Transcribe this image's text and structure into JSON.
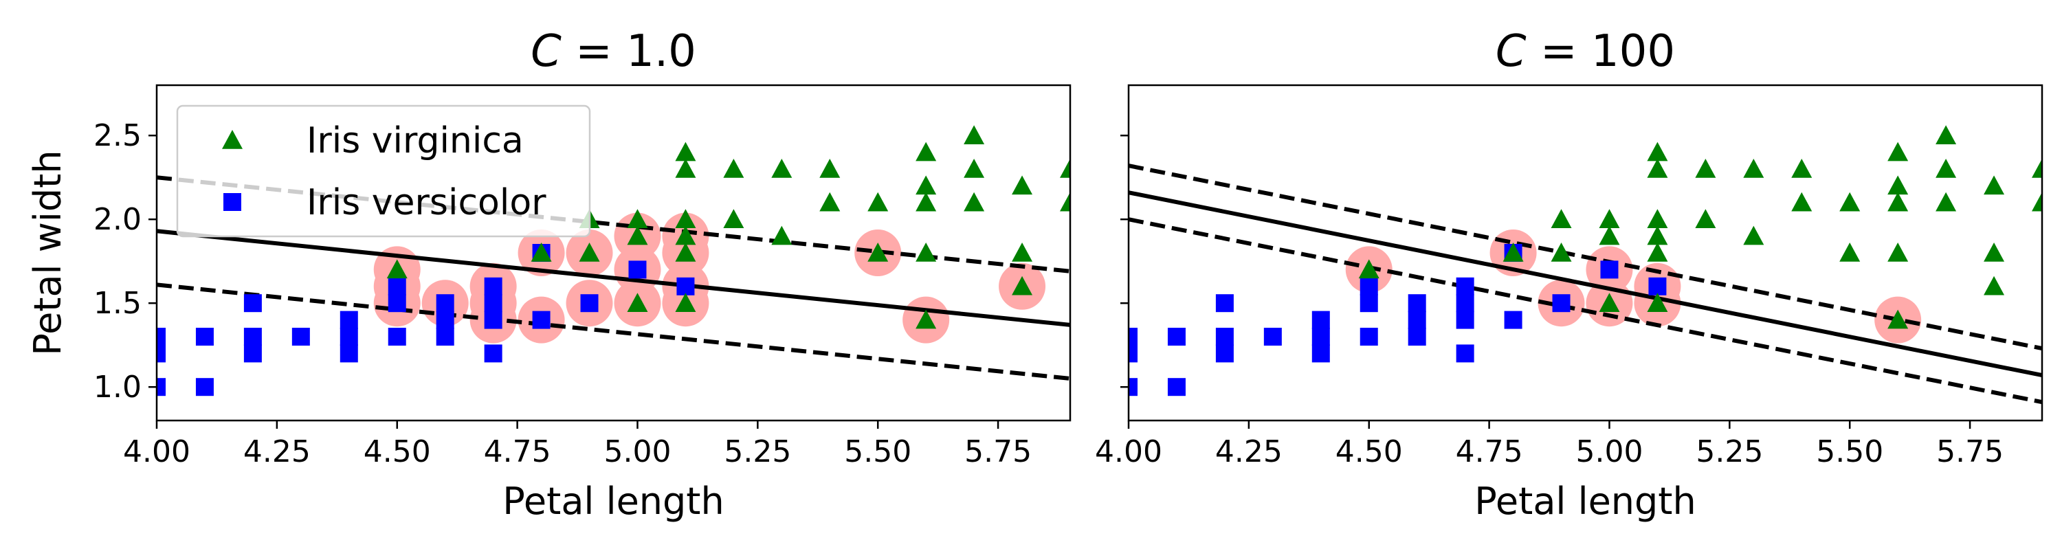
{
  "chart_data": [
    {
      "type": "scatter",
      "title": "C = 1.0",
      "title_var": "C",
      "title_value": "= 1.0",
      "xlabel": "Petal length",
      "ylabel": "Petal width",
      "xlim": [
        4.0,
        5.9
      ],
      "ylim": [
        0.8,
        2.8
      ],
      "xticks": [
        "4.00",
        "4.25",
        "4.50",
        "4.75",
        "5.00",
        "5.25",
        "5.50",
        "5.75"
      ],
      "yticks": [
        "1.0",
        "1.5",
        "2.0",
        "2.5"
      ],
      "legend": {
        "placement": "upper-left",
        "entries": [
          "Iris virginica",
          "Iris versicolor"
        ]
      },
      "boundary": {
        "x": [
          4.0,
          5.9
        ],
        "y": [
          1.93,
          1.37
        ]
      },
      "margin_upper": {
        "x": [
          4.0,
          5.9
        ],
        "y": [
          2.25,
          1.69
        ]
      },
      "margin_lower": {
        "x": [
          4.0,
          5.9
        ],
        "y": [
          1.61,
          1.05
        ]
      },
      "support_vectors": [
        [
          4.5,
          1.7
        ],
        [
          4.5,
          1.6
        ],
        [
          4.5,
          1.5
        ],
        [
          4.6,
          1.5
        ],
        [
          4.7,
          1.6
        ],
        [
          4.7,
          1.5
        ],
        [
          4.7,
          1.4
        ],
        [
          4.8,
          1.8
        ],
        [
          4.8,
          1.4
        ],
        [
          4.9,
          1.8
        ],
        [
          4.9,
          1.5
        ],
        [
          5.0,
          1.9
        ],
        [
          5.0,
          1.7
        ],
        [
          5.0,
          1.5
        ],
        [
          5.1,
          1.9
        ],
        [
          5.1,
          1.8
        ],
        [
          5.1,
          1.6
        ],
        [
          5.1,
          1.5
        ],
        [
          5.5,
          1.8
        ],
        [
          5.6,
          1.4
        ],
        [
          5.8,
          1.6
        ]
      ]
    },
    {
      "type": "scatter",
      "title": "C = 100",
      "title_var": "C",
      "title_value": "= 100",
      "xlabel": "Petal length",
      "ylabel": "",
      "xlim": [
        4.0,
        5.9
      ],
      "ylim": [
        0.8,
        2.8
      ],
      "xticks": [
        "4.00",
        "4.25",
        "4.50",
        "4.75",
        "5.00",
        "5.25",
        "5.50",
        "5.75"
      ],
      "yticks": [],
      "boundary": {
        "x": [
          4.0,
          5.9
        ],
        "y": [
          2.16,
          1.07
        ]
      },
      "margin_upper": {
        "x": [
          4.0,
          5.9
        ],
        "y": [
          2.32,
          1.23
        ]
      },
      "margin_lower": {
        "x": [
          4.0,
          5.9
        ],
        "y": [
          2.0,
          0.91
        ]
      },
      "support_vectors": [
        [
          4.5,
          1.7
        ],
        [
          4.8,
          1.8
        ],
        [
          4.9,
          1.5
        ],
        [
          5.0,
          1.7
        ],
        [
          5.0,
          1.5
        ],
        [
          5.1,
          1.6
        ],
        [
          5.1,
          1.5
        ],
        [
          5.6,
          1.4
        ]
      ]
    }
  ],
  "series": {
    "virginica": {
      "name": "Iris virginica",
      "color": "#008000",
      "marker": "triangle",
      "points": [
        [
          4.5,
          1.7
        ],
        [
          4.8,
          1.8
        ],
        [
          4.9,
          1.8
        ],
        [
          5.0,
          1.5
        ],
        [
          5.1,
          1.5
        ],
        [
          5.1,
          1.8
        ],
        [
          5.1,
          1.9
        ],
        [
          5.1,
          2.0
        ],
        [
          5.1,
          2.3
        ],
        [
          5.1,
          2.4
        ],
        [
          5.2,
          2.0
        ],
        [
          5.2,
          2.3
        ],
        [
          5.3,
          1.9
        ],
        [
          5.3,
          2.3
        ],
        [
          5.4,
          2.1
        ],
        [
          5.4,
          2.3
        ],
        [
          5.5,
          1.8
        ],
        [
          5.5,
          2.1
        ],
        [
          5.6,
          1.4
        ],
        [
          5.6,
          1.8
        ],
        [
          5.6,
          2.1
        ],
        [
          5.6,
          2.2
        ],
        [
          5.6,
          2.4
        ],
        [
          5.7,
          2.1
        ],
        [
          5.7,
          2.3
        ],
        [
          5.7,
          2.5
        ],
        [
          5.8,
          1.6
        ],
        [
          5.8,
          1.8
        ],
        [
          5.8,
          2.2
        ],
        [
          5.9,
          2.1
        ],
        [
          5.9,
          2.3
        ],
        [
          4.9,
          2.0
        ],
        [
          5.0,
          2.0
        ],
        [
          5.0,
          1.9
        ]
      ]
    },
    "versicolor": {
      "name": "Iris versicolor",
      "color": "#0000ff",
      "marker": "square",
      "points": [
        [
          4.0,
          1.0
        ],
        [
          4.0,
          1.2
        ],
        [
          4.0,
          1.3
        ],
        [
          4.1,
          1.0
        ],
        [
          4.1,
          1.3
        ],
        [
          4.2,
          1.2
        ],
        [
          4.2,
          1.3
        ],
        [
          4.2,
          1.5
        ],
        [
          4.3,
          1.3
        ],
        [
          4.4,
          1.2
        ],
        [
          4.4,
          1.3
        ],
        [
          4.4,
          1.4
        ],
        [
          4.5,
          1.3
        ],
        [
          4.5,
          1.5
        ],
        [
          4.5,
          1.6
        ],
        [
          4.6,
          1.3
        ],
        [
          4.6,
          1.4
        ],
        [
          4.6,
          1.5
        ],
        [
          4.7,
          1.2
        ],
        [
          4.7,
          1.4
        ],
        [
          4.7,
          1.5
        ],
        [
          4.7,
          1.6
        ],
        [
          4.8,
          1.4
        ],
        [
          4.8,
          1.8
        ],
        [
          4.9,
          1.5
        ],
        [
          5.0,
          1.7
        ],
        [
          5.1,
          1.6
        ]
      ]
    },
    "support_vector_color": "#ffaaaa"
  }
}
